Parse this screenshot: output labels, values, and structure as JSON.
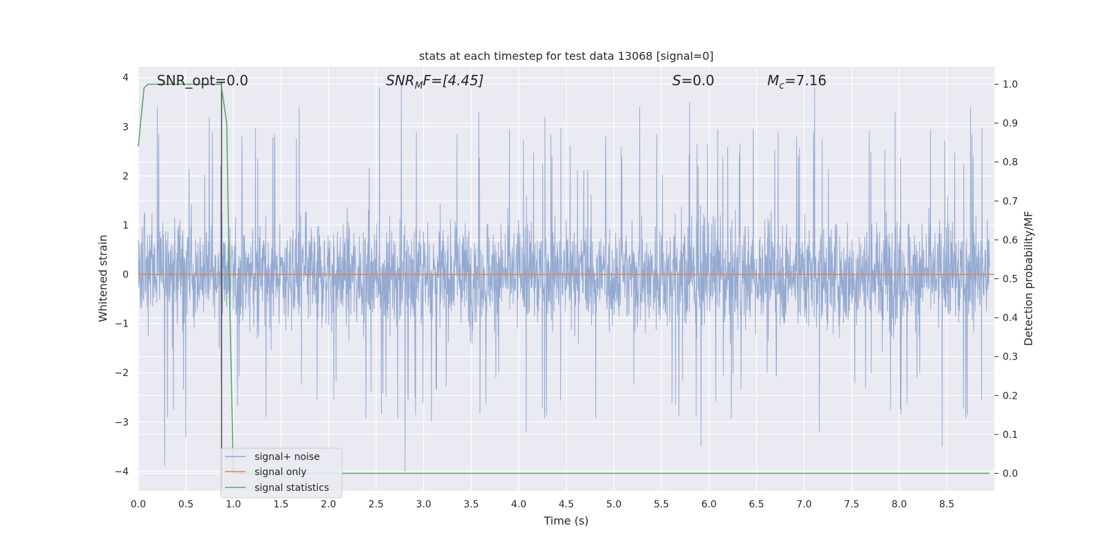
{
  "chart_data": {
    "type": "line",
    "title": "stats at each timestep for test data 13068 [signal=0]",
    "xlabel": "Time (s)",
    "ylabel_left": "Whitened strain",
    "ylabel_right": "Detection probability/MF",
    "xlim": [
      0.0,
      9.0
    ],
    "ylim_left": [
      -4.4,
      4.22
    ],
    "ylim_right": [
      -0.045,
      1.045
    ],
    "grid": true,
    "legend_placement": "lower-left",
    "x_ticks": [
      "0.0",
      "0.5",
      "1.0",
      "1.5",
      "2.0",
      "2.5",
      "3.0",
      "3.5",
      "4.0",
      "4.5",
      "5.0",
      "5.5",
      "6.0",
      "6.5",
      "7.0",
      "7.5",
      "8.0",
      "8.5"
    ],
    "left_ticks": [
      "4",
      "3",
      "2",
      "1",
      "0",
      "−1",
      "−2",
      "−3",
      "−4"
    ],
    "right_ticks": [
      "1.0",
      "0.9",
      "0.8",
      "0.7",
      "0.6",
      "0.5",
      "0.4",
      "0.3",
      "0.2",
      "0.1",
      "0.0"
    ],
    "annotations": {
      "snr_opt": "SNR_opt=0.0",
      "snr_mf_main": "SNR",
      "snr_mf_sub": "M",
      "snr_mf_rest": "F=[4.45]",
      "s_main": "S",
      "s_rest": "=0.0",
      "mc_main": "M",
      "mc_sub": "c",
      "mc_rest": "=7.16"
    },
    "marker_line_x": 0.875,
    "series": [
      {
        "name": "signal+ noise",
        "axis": "left",
        "color": "#8fa6cf",
        "description_values": "noise band approx -1.5 to 1.5 with spikes up to ~3.8 and down to ~-4.0",
        "noise_envelope": [
          -1.5,
          1.5
        ],
        "spikes_x": [
          0.2,
          0.28,
          0.5,
          0.75,
          1.35,
          1.7,
          2.55,
          2.78,
          2.82,
          3.6,
          4.1,
          4.3,
          5.3,
          5.83,
          5.95,
          7.15,
          7.2,
          8.0,
          8.5,
          8.8
        ],
        "spikes_y": [
          3.4,
          -3.9,
          -3.3,
          3.2,
          -2.9,
          3.4,
          3.8,
          3.85,
          -4.0,
          3.3,
          -3.2,
          3.2,
          3.4,
          3.5,
          -3.5,
          3.8,
          -3.2,
          3.3,
          -3.5,
          3.4
        ]
      },
      {
        "name": "signal only",
        "axis": "left",
        "color": "#dd8452",
        "x": [
          0.0,
          9.0
        ],
        "y": [
          0.0,
          0.0
        ]
      },
      {
        "name": "signal statistics",
        "axis": "right",
        "color": "#55a868",
        "x": [
          0.0,
          0.06,
          0.1,
          0.2,
          0.3,
          0.4,
          0.5,
          0.6,
          0.7,
          0.8,
          0.87,
          0.93,
          0.96,
          1.0,
          1.05,
          1.5,
          2.0,
          3.0,
          4.0,
          5.0,
          6.0,
          7.0,
          8.0,
          8.95
        ],
        "y": [
          0.84,
          0.99,
          1.0,
          1.0,
          1.0,
          1.0,
          1.0,
          1.0,
          1.0,
          1.0,
          1.0,
          0.9,
          0.45,
          0.0,
          0.0,
          0.0,
          0.0,
          0.0,
          0.0,
          0.0,
          0.0,
          0.0,
          0.0,
          0.0
        ]
      }
    ]
  },
  "colors": {
    "plot_bg": "#eaeaf2",
    "grid": "#ffffff",
    "marker_line": "#4c4c4c"
  }
}
